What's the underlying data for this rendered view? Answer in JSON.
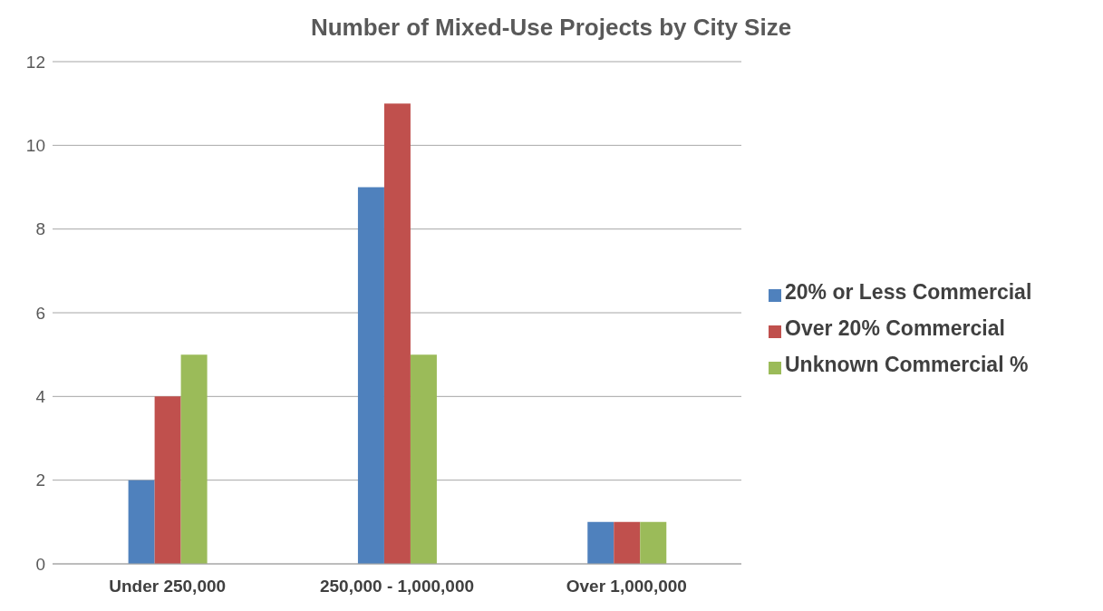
{
  "chart_data": {
    "type": "bar",
    "title": "Number of Mixed-Use Projects by City Size",
    "categories": [
      "Under 250,000",
      "250,000 - 1,000,000",
      "Over 1,000,000"
    ],
    "series": [
      {
        "name": "20% or Less Commercial",
        "color": "#4f81bd",
        "values": [
          2,
          9,
          1
        ]
      },
      {
        "name": "Over 20% Commercial",
        "color": "#c0504d",
        "values": [
          4,
          11,
          1
        ]
      },
      {
        "name": "Unknown Commercial %",
        "color": "#9bbb59",
        "values": [
          5,
          5,
          1
        ]
      }
    ],
    "ylim": [
      0,
      12
    ],
    "yticks": [
      0,
      2,
      4,
      6,
      8,
      10,
      12
    ],
    "grid": "y",
    "legend": "right"
  }
}
